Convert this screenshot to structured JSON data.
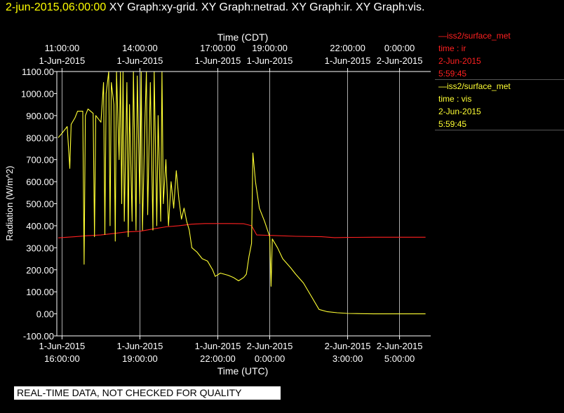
{
  "header": {
    "timestamp": "2-jun-2015,06:00:00",
    "graphs": "XY Graph:xy-grid.  XY Graph:netrad.  XY Graph:ir.  XY Graph:vis."
  },
  "legend": [
    {
      "lines": [
        "—iss2/surface_met",
        "time : ir",
        "2-Jun-2015",
        "5:59:45"
      ],
      "color": "#ff2020"
    },
    {
      "lines": [
        "—iss2/surface_met",
        "time : vis",
        "2-Jun-2015",
        "5:59:45"
      ],
      "color": "#ffff33"
    }
  ],
  "footer_note": "REAL-TIME DATA, NOT CHECKED FOR QUALITY",
  "colors": {
    "ir": "#ff2020",
    "vis": "#ffff33",
    "axes": "#ffffff",
    "grid": "#ffffff"
  },
  "chart_data": {
    "type": "line",
    "x_unit": "hours since 1-Jun-2015 16:00 UTC",
    "top_xlabel": "Time (CDT)",
    "xlabel": "Time (UTC)",
    "ylabel": "Radiation (W/m^2)",
    "xlim": [
      -0.2,
      14.2
    ],
    "ylim": [
      -100,
      1100
    ],
    "grid": true,
    "legend_position": "right",
    "y_ticks": [
      "1100.00",
      "1000.00",
      "900.00",
      "800.00",
      "700.00",
      "600.00",
      "500.00",
      "400.00",
      "300.00",
      "200.00",
      "100.00",
      "0.00",
      "-100.00"
    ],
    "bottom_ticks": [
      {
        "x": 0.0,
        "date": "1-Jun-2015",
        "time": "16:00:00"
      },
      {
        "x": 3.0,
        "date": "1-Jun-2015",
        "time": "19:00:00"
      },
      {
        "x": 6.0,
        "date": "1-Jun-2015",
        "time": "22:00:00"
      },
      {
        "x": 8.0,
        "date": "2-Jun-2015",
        "time": "0:00:00"
      },
      {
        "x": 11.0,
        "date": "2-Jun-2015",
        "time": "3:00:00"
      },
      {
        "x": 13.0,
        "date": "2-Jun-2015",
        "time": "5:00:00"
      }
    ],
    "top_ticks": [
      {
        "x": 0.0,
        "time": "11:00:00",
        "date": "1-Jun-2015"
      },
      {
        "x": 3.0,
        "time": "14:00:00",
        "date": "1-Jun-2015"
      },
      {
        "x": 6.0,
        "time": "17:00:00",
        "date": "1-Jun-2015"
      },
      {
        "x": 8.0,
        "time": "19:00:00",
        "date": "1-Jun-2015"
      },
      {
        "x": 11.0,
        "time": "22:00:00",
        "date": "1-Jun-2015"
      },
      {
        "x": 13.0,
        "time": "0:00:00",
        "date": "2-Jun-2015"
      }
    ],
    "series": [
      {
        "name": "time : ir",
        "points": [
          [
            -0.15,
            345
          ],
          [
            0.5,
            350
          ],
          [
            1.0,
            355
          ],
          [
            1.5,
            358
          ],
          [
            2.0,
            365
          ],
          [
            2.5,
            372
          ],
          [
            3.0,
            375
          ],
          [
            3.5,
            385
          ],
          [
            4.0,
            395
          ],
          [
            4.5,
            400
          ],
          [
            5.0,
            407
          ],
          [
            5.5,
            410
          ],
          [
            6.0,
            410
          ],
          [
            6.5,
            410
          ],
          [
            7.0,
            409
          ],
          [
            7.3,
            400
          ],
          [
            7.5,
            358
          ],
          [
            8.0,
            356
          ],
          [
            9.0,
            352
          ],
          [
            10.0,
            350
          ],
          [
            10.5,
            346
          ],
          [
            11.0,
            347
          ],
          [
            12.0,
            348
          ],
          [
            13.0,
            348
          ],
          [
            14.0,
            348
          ]
        ]
      },
      {
        "name": "time : vis",
        "points": [
          [
            -0.15,
            800
          ],
          [
            0.0,
            820
          ],
          [
            0.2,
            850
          ],
          [
            0.3,
            660
          ],
          [
            0.35,
            860
          ],
          [
            0.5,
            890
          ],
          [
            0.6,
            920
          ],
          [
            0.8,
            920
          ],
          [
            0.85,
            225
          ],
          [
            0.9,
            900
          ],
          [
            1.0,
            930
          ],
          [
            1.2,
            910
          ],
          [
            1.25,
            350
          ],
          [
            1.3,
            900
          ],
          [
            1.5,
            870
          ],
          [
            1.6,
            1050
          ],
          [
            1.65,
            360
          ],
          [
            1.7,
            1000
          ],
          [
            1.8,
            1100
          ],
          [
            1.85,
            400
          ],
          [
            1.9,
            1050
          ],
          [
            2.0,
            950
          ],
          [
            2.05,
            330
          ],
          [
            2.1,
            1100
          ],
          [
            2.2,
            700
          ],
          [
            2.25,
            1100
          ],
          [
            2.3,
            500
          ],
          [
            2.35,
            1100
          ],
          [
            2.4,
            420
          ],
          [
            2.5,
            1050
          ],
          [
            2.55,
            350
          ],
          [
            2.6,
            950
          ],
          [
            2.7,
            420
          ],
          [
            2.75,
            1100
          ],
          [
            2.85,
            380
          ],
          [
            2.9,
            1080
          ],
          [
            3.0,
            500
          ],
          [
            3.05,
            1100
          ],
          [
            3.1,
            380
          ],
          [
            3.2,
            900
          ],
          [
            3.25,
            1100
          ],
          [
            3.3,
            450
          ],
          [
            3.4,
            1050
          ],
          [
            3.5,
            380
          ],
          [
            3.55,
            1100
          ],
          [
            3.65,
            400
          ],
          [
            3.7,
            900
          ],
          [
            3.8,
            420
          ],
          [
            3.85,
            1100
          ],
          [
            3.9,
            500
          ],
          [
            4.0,
            700
          ],
          [
            4.1,
            400
          ],
          [
            4.2,
            600
          ],
          [
            4.3,
            480
          ],
          [
            4.4,
            650
          ],
          [
            4.5,
            520
          ],
          [
            4.6,
            430
          ],
          [
            4.7,
            480
          ],
          [
            4.8,
            420
          ],
          [
            4.9,
            380
          ],
          [
            5.0,
            300
          ],
          [
            5.2,
            280
          ],
          [
            5.4,
            250
          ],
          [
            5.6,
            240
          ],
          [
            5.8,
            200
          ],
          [
            5.9,
            170
          ],
          [
            6.1,
            185
          ],
          [
            6.4,
            175
          ],
          [
            6.6,
            165
          ],
          [
            6.8,
            150
          ],
          [
            7.0,
            165
          ],
          [
            7.1,
            180
          ],
          [
            7.2,
            260
          ],
          [
            7.3,
            320
          ],
          [
            7.35,
            730
          ],
          [
            7.45,
            600
          ],
          [
            7.6,
            480
          ],
          [
            7.8,
            420
          ],
          [
            8.0,
            350
          ],
          [
            8.05,
            125
          ],
          [
            8.1,
            340
          ],
          [
            8.3,
            300
          ],
          [
            8.5,
            250
          ],
          [
            8.8,
            210
          ],
          [
            9.0,
            180
          ],
          [
            9.3,
            140
          ],
          [
            9.6,
            80
          ],
          [
            9.9,
            20
          ],
          [
            10.2,
            10
          ],
          [
            10.6,
            5
          ],
          [
            11.0,
            2
          ],
          [
            11.5,
            1
          ],
          [
            12.0,
            0
          ],
          [
            13.0,
            0
          ],
          [
            14.0,
            0
          ]
        ]
      }
    ]
  }
}
